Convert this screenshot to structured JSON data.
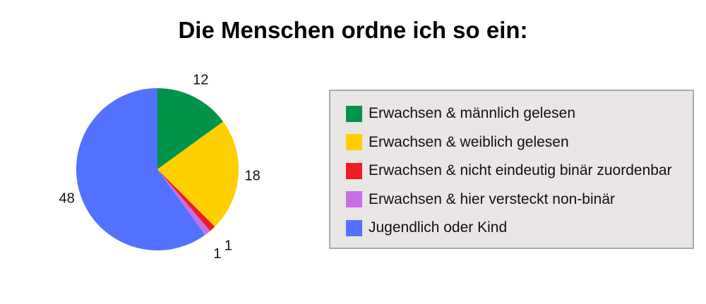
{
  "chart_data": {
    "type": "pie",
    "title": "Die Menschen ordne ich so ein:",
    "categories": [
      "Erwachsen & männlich gelesen",
      "Erwachsen & weiblich gelesen",
      "Erwachsen & nicht eindeutig binär zuordenbar",
      "Erwachsen & hier versteckt non-binär",
      "Jugendlich oder Kind"
    ],
    "values": [
      12,
      18,
      1,
      1,
      48
    ],
    "colors": [
      "#00934a",
      "#ffcf00",
      "#ee1c25",
      "#c86ee6",
      "#5271ff"
    ],
    "legend_position": "right"
  }
}
